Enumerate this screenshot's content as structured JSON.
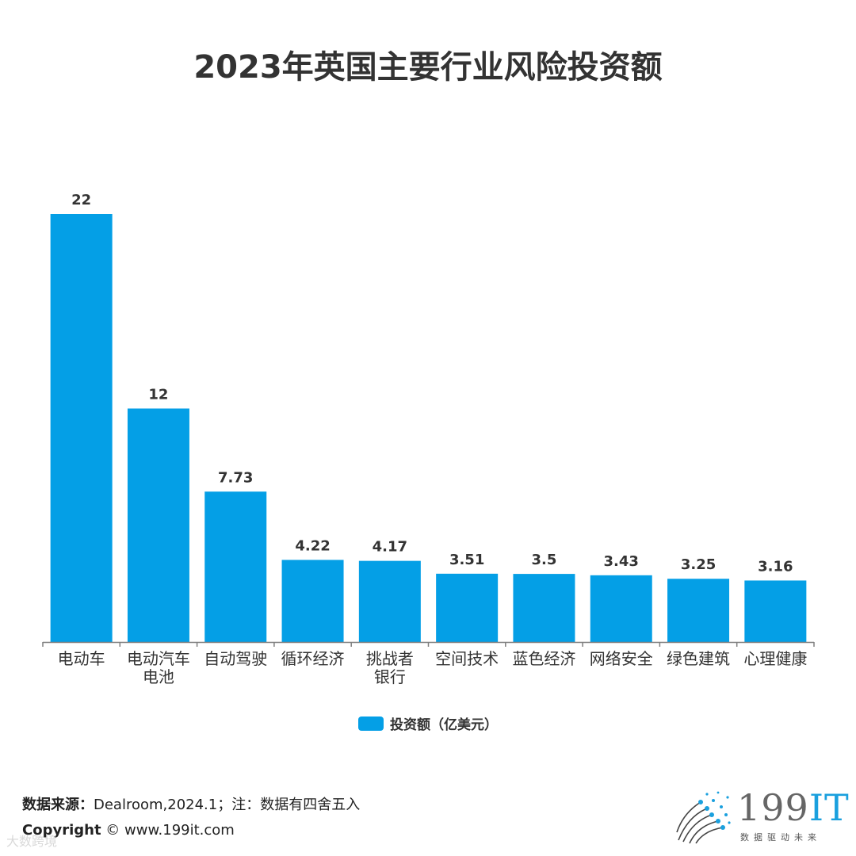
{
  "title": "2023年英国主要行业风险投资额",
  "chart_data": {
    "type": "bar",
    "categories": [
      "电动车",
      "电动汽车\n电池",
      "自动驾驶",
      "循环经济",
      "挑战者\n银行",
      "空间技术",
      "蓝色经济",
      "网络安全",
      "绿色建筑",
      "心理健康"
    ],
    "value_labels": [
      "22",
      "12",
      "7.73",
      "4.22",
      "4.17",
      "3.51",
      "3.5",
      "3.43",
      "3.25",
      "3.16"
    ],
    "series": [
      {
        "name": "投资额（亿美元）",
        "values": [
          22,
          12,
          7.73,
          4.22,
          4.17,
          3.51,
          3.5,
          3.43,
          3.25,
          3.16
        ]
      }
    ],
    "title": "2023年英国主要行业风险投资额",
    "ylim": [
      0,
      22
    ],
    "grid": false,
    "legend_position": "bottom",
    "bar_color": "#049fe6"
  },
  "footer": {
    "source_label": "数据来源：",
    "source_text": "Dealroom,2024.1；注：数据有四舍五入",
    "copyright_label": "Copyright",
    "copyright_text": "© www.199it.com",
    "watermark": "大数跨境"
  },
  "logo": {
    "name_main": "199",
    "name_it": "IT",
    "tagline": "数据驱动未来"
  }
}
